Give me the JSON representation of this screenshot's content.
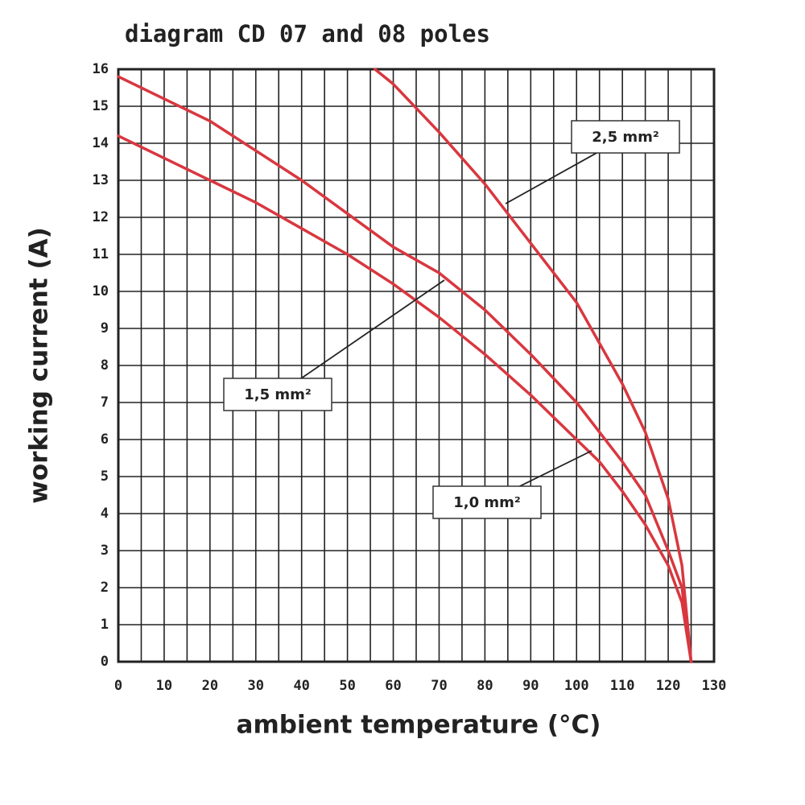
{
  "chart_data": {
    "type": "line",
    "title": "diagram CD 07 and 08 poles",
    "x_label": "ambient temperature (°C)",
    "y_label": "working current (A)",
    "xlim": [
      0,
      130
    ],
    "ylim": [
      0,
      16
    ],
    "xticks": [
      0,
      10,
      20,
      30,
      40,
      50,
      60,
      70,
      80,
      90,
      100,
      110,
      120,
      130
    ],
    "x_minor_grid": [
      5,
      15,
      25,
      35,
      45,
      55,
      65,
      75,
      85,
      95,
      105,
      115,
      125
    ],
    "yticks": [
      0,
      1,
      2,
      3,
      4,
      5,
      6,
      7,
      8,
      9,
      10,
      11,
      12,
      13,
      14,
      15,
      16
    ],
    "grid": true,
    "series": [
      {
        "name": "1,0 mm²",
        "color": "#d9373f",
        "x": [
          0,
          10,
          20,
          30,
          40,
          50,
          60,
          70,
          80,
          90,
          100,
          105,
          110,
          115,
          120,
          123,
          125
        ],
        "values": [
          14.2,
          13.6,
          13.0,
          12.4,
          11.7,
          11.0,
          10.2,
          9.3,
          8.3,
          7.2,
          6.0,
          5.4,
          4.6,
          3.7,
          2.6,
          1.6,
          0
        ]
      },
      {
        "name": "1,5 mm²",
        "color": "#d9373f",
        "x": [
          0,
          10,
          20,
          30,
          40,
          50,
          60,
          70,
          80,
          90,
          100,
          110,
          115,
          120,
          123,
          125
        ],
        "values": [
          15.8,
          15.2,
          14.6,
          13.8,
          13.0,
          12.1,
          11.2,
          10.5,
          9.5,
          8.3,
          7.0,
          5.4,
          4.5,
          3.0,
          2.0,
          0
        ]
      },
      {
        "name": "2,5 mm²",
        "color": "#d9373f",
        "x": [
          56,
          60,
          70,
          80,
          90,
          100,
          110,
          115,
          120,
          123,
          125
        ],
        "values": [
          16,
          15.6,
          14.3,
          12.9,
          11.3,
          9.7,
          7.5,
          6.2,
          4.4,
          2.6,
          0
        ]
      }
    ]
  }
}
